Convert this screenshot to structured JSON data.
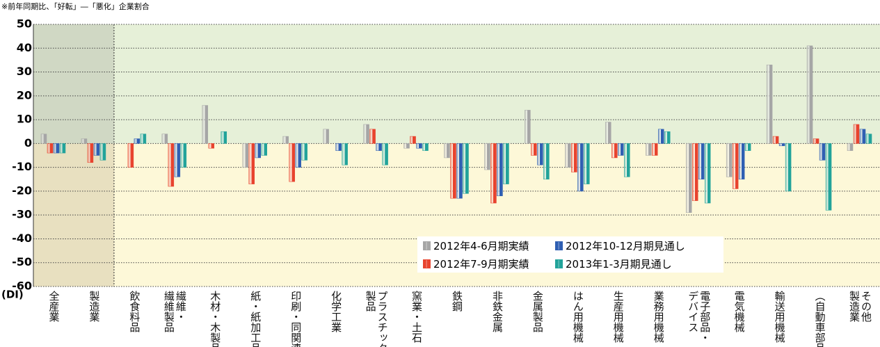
{
  "chart_data": {
    "type": "bar",
    "note": "※前年同期比、「好転」―「悪化」企業割合",
    "ylabel": "(DI)",
    "categories": [
      "全産業",
      "製造業",
      "飲食料品",
      "繊維・\n繊維製品",
      "木材・木製品",
      "紙・紙加工品",
      "印刷・同関連",
      "化学工業",
      "プラスチック\n製品",
      "窯業・土石",
      "鉄鋼",
      "非鉄金属",
      "金属製品",
      "はん用機械",
      "生産用機械",
      "業務用機械",
      "電子部品・\nデバイス",
      "電気機械",
      "輸送用機械",
      "（自動車部品）",
      "その他\n製造業"
    ],
    "series": [
      {
        "name": "2012年4-6月期実績",
        "color": "#a6a6a6",
        "values": [
          4,
          2,
          0,
          4,
          16,
          -10,
          3,
          6,
          8,
          -2,
          -6,
          -11,
          14,
          -10,
          9,
          -5,
          -29,
          -14,
          33,
          41,
          -3
        ]
      },
      {
        "name": "2012年7-9月期実績",
        "color": "#e8432e",
        "values": [
          -4,
          -8,
          -10,
          -18,
          -2,
          -17,
          -16,
          0,
          6,
          3,
          -23,
          -25,
          -5,
          -12,
          -6,
          -5,
          -24,
          -19,
          3,
          2,
          8
        ]
      },
      {
        "name": "2012年10-12月期見通し",
        "color": "#2f5fb3",
        "values": [
          -4,
          -5,
          2,
          -14,
          0,
          -6,
          -10,
          -3,
          -3,
          -2,
          -23,
          -22,
          -9,
          -20,
          -5,
          6,
          -15,
          -15,
          -1,
          -7,
          6
        ]
      },
      {
        "name": "2013年1-3月期見通し",
        "color": "#22a39a",
        "values": [
          -4,
          -7,
          4,
          -10,
          5,
          -5,
          -7,
          -9,
          -9,
          -3,
          -21,
          -17,
          -15,
          -17,
          -14,
          5,
          -25,
          -3,
          -20,
          -28,
          4
        ]
      }
    ],
    "ylim": [
      -60,
      50
    ],
    "yticks": [
      -60,
      -50,
      -40,
      -30,
      -20,
      -10,
      0,
      10,
      20,
      30,
      40,
      50
    ],
    "grid": true
  }
}
